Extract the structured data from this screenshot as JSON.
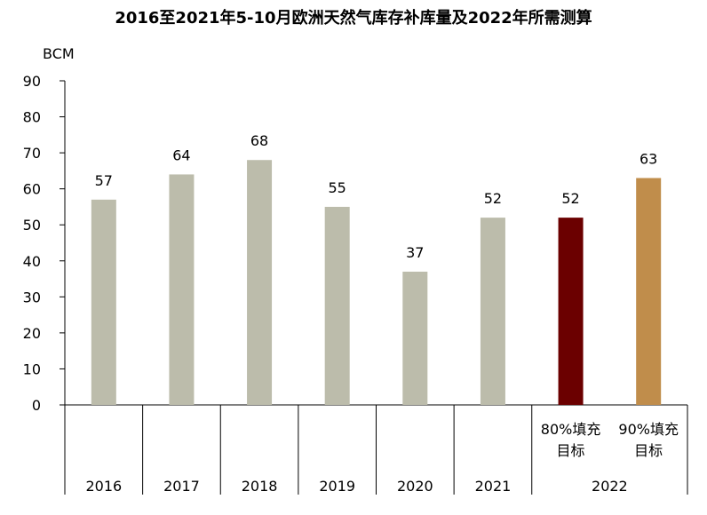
{
  "chart_data": {
    "type": "bar",
    "title": "2016至2021年5-10月欧洲天然气库存补库量及2022年所需测算",
    "ylabel": "BCM",
    "ylim": [
      0,
      90
    ],
    "yticks": [
      0,
      10,
      20,
      30,
      40,
      50,
      60,
      70,
      80,
      90
    ],
    "grid": false,
    "categories": [
      {
        "year": "2016",
        "sub": ""
      },
      {
        "year": "2017",
        "sub": ""
      },
      {
        "year": "2018",
        "sub": ""
      },
      {
        "year": "2019",
        "sub": ""
      },
      {
        "year": "2020",
        "sub": ""
      },
      {
        "year": "2021",
        "sub": ""
      },
      {
        "year": "2022",
        "sub": [
          "80%填充",
          "目标"
        ]
      },
      {
        "year": "2022",
        "sub": [
          "90%填充",
          "目标"
        ]
      }
    ],
    "values": [
      57,
      64,
      68,
      55,
      37,
      52,
      52,
      63
    ],
    "colors": [
      "#bcbcab",
      "#bcbcab",
      "#bcbcab",
      "#bcbcab",
      "#bcbcab",
      "#bcbcab",
      "#6b0000",
      "#c08d4b"
    ],
    "group_labels": [
      "2016",
      "2017",
      "2018",
      "2019",
      "2020",
      "2021",
      "2022"
    ]
  }
}
